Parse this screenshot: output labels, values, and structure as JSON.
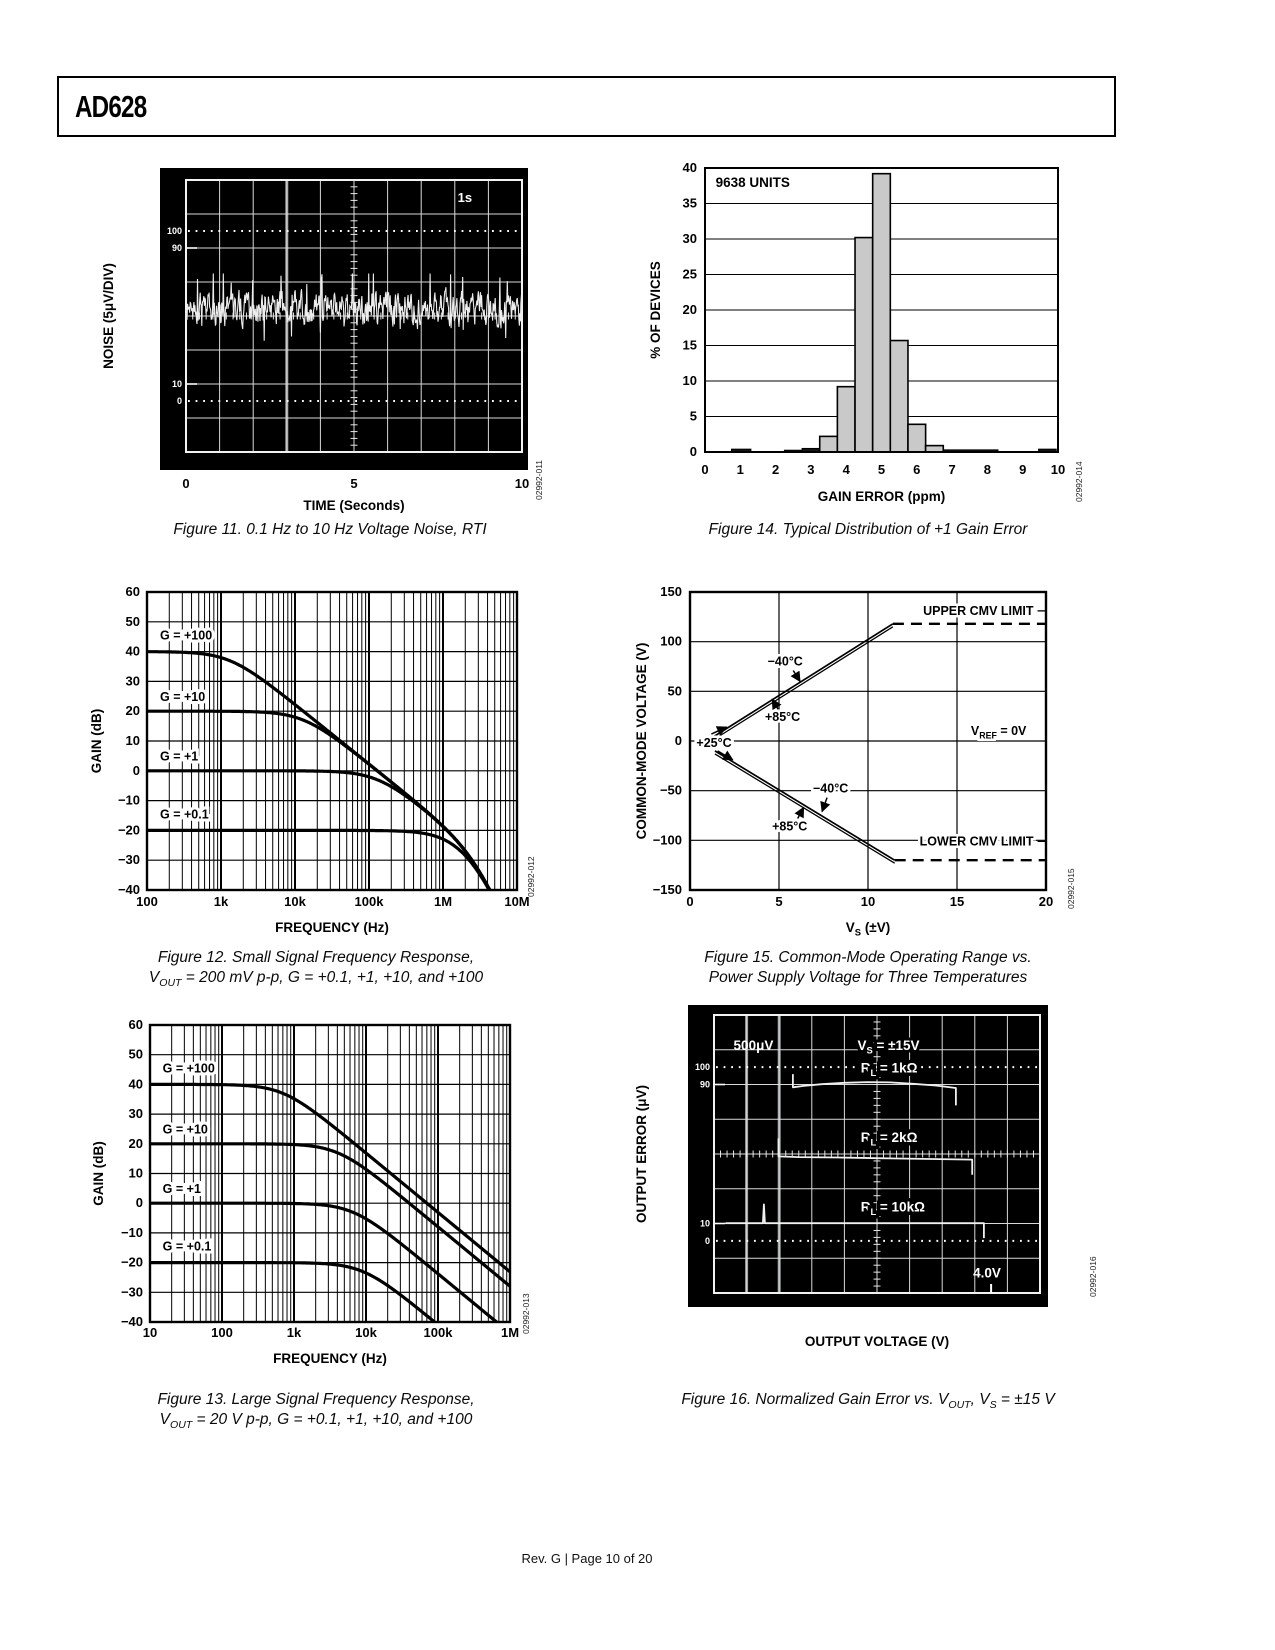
{
  "page": {
    "product": "AD628",
    "footer": "Rev. G | Page 10 of 20"
  },
  "colors": {
    "ink": "#000000",
    "scope_bg": "#000000",
    "scope_grid": "#d9d9d9",
    "scope_trace": "#f0f0f0",
    "bar_fill": "#c9c9c9",
    "bar_solid": "#141414"
  },
  "chart_data": [
    {
      "id": "fig11",
      "type": "line",
      "subtype": "oscilloscope",
      "caption_lines": [
        [
          "Figure 11. 0.1 Hz to 10 Hz Voltage Noise, RTI"
        ]
      ],
      "watermark": "02992-011",
      "xlabel": "TIME (Seconds)",
      "ylabel": "NOISE (5μV/DIV)",
      "xlim": [
        0,
        10
      ],
      "xtick_labels": [
        "0",
        "5",
        "10"
      ],
      "divisions": [
        10,
        8
      ],
      "graticule_marks": [
        {
          "label": "100",
          "div": 1.5,
          "dotted": true
        },
        {
          "label": "90",
          "div": 2.0,
          "dotted": false
        },
        {
          "label": "10",
          "div": 6.0,
          "dotted": false
        },
        {
          "label": "0",
          "div": 6.5,
          "dotted": true
        }
      ],
      "timebase_label": "1s",
      "bright_columns": [
        3
      ],
      "noise": {
        "seed": 11,
        "center_div": 3.8,
        "amp_div": 0.55,
        "description": "0.1 Hz to 10 Hz input-referred voltage noise, ≈3 μV p-p at 5 μV/division"
      }
    },
    {
      "id": "fig14",
      "type": "bar",
      "caption_lines": [
        [
          "Figure 14. Typical Distribution of +1 Gain Error"
        ]
      ],
      "watermark": "02992-014",
      "xlabel": "GAIN ERROR (ppm)",
      "ylabel": "% OF DEVICES",
      "annotation": "9638 UNITS",
      "xlim": [
        0,
        10
      ],
      "ylim": [
        0,
        40
      ],
      "xticks": [
        0,
        1,
        2,
        3,
        4,
        5,
        6,
        7,
        8,
        9,
        10
      ],
      "yticks": [
        0,
        5,
        10,
        15,
        20,
        25,
        30,
        35,
        40
      ],
      "bars": [
        {
          "x0": 0.75,
          "x1": 1.3,
          "value": 0.4,
          "solid": true
        },
        {
          "x0": 2.25,
          "x1": 2.75,
          "value": 0.25,
          "solid": true
        },
        {
          "x0": 2.75,
          "x1": 3.25,
          "value": 0.5,
          "solid": true
        },
        {
          "x0": 3.25,
          "x1": 3.75,
          "value": 2.2
        },
        {
          "x0": 3.75,
          "x1": 4.25,
          "value": 9.2
        },
        {
          "x0": 4.25,
          "x1": 4.75,
          "value": 30.2
        },
        {
          "x0": 4.75,
          "x1": 5.25,
          "value": 39.2
        },
        {
          "x0": 5.25,
          "x1": 5.75,
          "value": 15.7
        },
        {
          "x0": 5.75,
          "x1": 6.25,
          "value": 3.9
        },
        {
          "x0": 6.25,
          "x1": 6.75,
          "value": 0.9
        },
        {
          "x0": 6.75,
          "x1": 8.3,
          "value": 0.3,
          "solid": true
        },
        {
          "x0": 9.45,
          "x1": 9.95,
          "value": 0.4,
          "solid": true
        }
      ]
    },
    {
      "id": "fig12",
      "type": "line",
      "subtype": "bode",
      "caption_lines": [
        [
          "Figure 12. Small Signal Frequency Response,"
        ],
        [
          "V",
          "_OUT",
          " = 200 mV p-p, G = +0.1, +1, +10, and +100"
        ]
      ],
      "watermark": "02992-012",
      "xlabel": "FREQUENCY (Hz)",
      "ylabel": "GAIN (dB)",
      "xlog": true,
      "xlim": [
        100,
        10000000
      ],
      "xticks": [
        {
          "v": 100,
          "label": "100"
        },
        {
          "v": 1000,
          "label": "1k"
        },
        {
          "v": 10000,
          "label": "10k"
        },
        {
          "v": 100000,
          "label": "100k"
        },
        {
          "v": 1000000,
          "label": "1M"
        },
        {
          "v": 10000000,
          "label": "10M"
        }
      ],
      "ylim": [
        -40,
        60
      ],
      "ytick_step": 10,
      "series": [
        {
          "label": "G = +100",
          "gain_db": 40,
          "corner_hz": 1300,
          "label_f": 150,
          "label_db": 44
        },
        {
          "label": "G = +10",
          "gain_db": 20,
          "corner_hz": 13000,
          "label_f": 150,
          "label_db": 23.5
        },
        {
          "label": "G = +1",
          "gain_db": 0,
          "corner_hz": 130000,
          "label_f": 150,
          "label_db": 3.5
        },
        {
          "label": "G = +0.1",
          "gain_db": -20,
          "corner_hz": 1300000,
          "label_f": 150,
          "label_db": -16
        }
      ],
      "extra_poles_hz": [
        3000000,
        3000000
      ]
    },
    {
      "id": "fig15",
      "type": "line",
      "subtype": "operating-range",
      "caption_lines": [
        [
          "Figure 15. Common-Mode Operating Range vs."
        ],
        [
          "Power Supply Voltage for Three Temperatures"
        ]
      ],
      "watermark": "02992-015",
      "xlabel_tokens": [
        "V",
        "_S",
        " (±V)"
      ],
      "ylabel": "COMMON-MODE VOLTAGE (V)",
      "xlim": [
        0,
        20
      ],
      "xticks": [
        0,
        5,
        10,
        15,
        20
      ],
      "ylim": [
        -150,
        150
      ],
      "yticks": [
        -150,
        -100,
        -50,
        0,
        50,
        100,
        150
      ],
      "upper": {
        "solid": [
          [
            1.3,
            4
          ],
          [
            11.4,
            118
          ]
        ],
        "dash_y": 118,
        "label": "UPPER CMV LIMIT",
        "label_x": 19.3,
        "label_y": 131
      },
      "lower": {
        "solid": [
          [
            1.4,
            -10
          ],
          [
            11.5,
            -120
          ]
        ],
        "dash_y": -120,
        "label": "LOWER CMV LIMIT",
        "label_x": 19.3,
        "label_y": -101
      },
      "vref_tokens": [
        "V",
        "_REF",
        " = 0V"
      ],
      "vref_x": 18.9,
      "vref_y": 10,
      "temp_labels": [
        {
          "text": "−40°C",
          "x": 5.35,
          "y": 80,
          "arrows": [
            [
              [
                5.8,
                71
              ],
              [
                6.18,
                60
              ]
            ]
          ]
        },
        {
          "text": "+85°C",
          "x": 5.2,
          "y": 24,
          "arrows": [
            [
              [
                4.95,
                32
              ],
              [
                4.62,
                42
              ]
            ]
          ]
        },
        {
          "text": "+25°C",
          "x": 1.35,
          "y": -2,
          "arrows": [
            [
              [
                1.2,
                7
              ],
              [
                2.05,
                14
              ]
            ],
            [
              [
                1.55,
                -10
              ],
              [
                2.4,
                -19
              ]
            ]
          ]
        },
        {
          "text": "−40°C",
          "x": 7.9,
          "y": -48,
          "arrows": [
            [
              [
                7.7,
                -57
              ],
              [
                7.42,
                -71
              ]
            ]
          ]
        },
        {
          "text": "+85°C",
          "x": 5.6,
          "y": -86,
          "arrows": [
            [
              [
                6.05,
                -78
              ],
              [
                6.38,
                -67
              ]
            ]
          ]
        }
      ]
    },
    {
      "id": "fig13",
      "type": "line",
      "subtype": "bode",
      "caption_lines": [
        [
          "Figure 13. Large Signal Frequency Response,"
        ],
        [
          "V",
          "_OUT",
          " = 20 V p-p, G = +0.1, +1, +10, and +100"
        ]
      ],
      "watermark": "02992-013",
      "xlabel": "FREQUENCY (Hz)",
      "ylabel": "GAIN (dB)",
      "xlog": true,
      "xlim": [
        10,
        1000000
      ],
      "xticks": [
        {
          "v": 10,
          "label": "10"
        },
        {
          "v": 100,
          "label": "100"
        },
        {
          "v": 1000,
          "label": "1k"
        },
        {
          "v": 10000,
          "label": "10k"
        },
        {
          "v": 100000,
          "label": "100k"
        },
        {
          "v": 1000000,
          "label": "1M"
        }
      ],
      "ylim": [
        -40,
        60
      ],
      "ytick_step": 10,
      "series": [
        {
          "label": "G = +100",
          "gain_db": 40,
          "corner_hz": 700,
          "label_f": 15,
          "label_db": 44
        },
        {
          "label": "G = +10",
          "gain_db": 20,
          "corner_hz": 4000,
          "label_f": 15,
          "label_db": 23.5
        },
        {
          "label": "G = +1",
          "gain_db": 0,
          "corner_hz": 6500,
          "label_f": 15,
          "label_db": 3.5
        },
        {
          "label": "G = +0.1",
          "gain_db": -20,
          "corner_hz": 9000,
          "label_f": 15,
          "label_db": -16
        }
      ],
      "extra_poles_hz": []
    },
    {
      "id": "fig16",
      "type": "line",
      "subtype": "oscilloscope",
      "caption_lines": [
        [
          "Figure 16. Normalized Gain Error vs. V",
          "_OUT",
          ", V",
          "_S",
          " = ±15 V"
        ]
      ],
      "watermark": "02992-016",
      "xlabel": "OUTPUT VOLTAGE (V)",
      "ylabel": "OUTPUT ERROR (μV)",
      "divisions": [
        10,
        8
      ],
      "graticule_marks": [
        {
          "label": "100",
          "div": 1.5,
          "dotted": true
        },
        {
          "label": "90",
          "div": 2.0,
          "dotted": false
        },
        {
          "label": "10",
          "div": 6.0,
          "dotted": false
        },
        {
          "label": "0",
          "div": 6.5,
          "dotted": true
        }
      ],
      "scale_label": "500μV",
      "supply_tokens": [
        "V",
        "_S",
        " = ±15V"
      ],
      "volt_label": "4.0V",
      "bright_columns": [
        1,
        2
      ],
      "bottom_tick_div": 8.5,
      "traces": [
        {
          "label_tokens": [
            "R",
            "_L",
            " = 1kΩ"
          ],
          "label_div": [
            4.5,
            1.66
          ],
          "points": [
            [
              2.42,
              1.7
            ],
            [
              2.42,
              2.08
            ],
            [
              2.75,
              2.04
            ],
            [
              3.3,
              1.99
            ],
            [
              4.0,
              1.95
            ],
            [
              4.7,
              1.93
            ],
            [
              5.4,
              1.94
            ],
            [
              6.1,
              1.98
            ],
            [
              6.8,
              2.03
            ],
            [
              7.42,
              2.1
            ],
            [
              7.42,
              2.6
            ]
          ]
        },
        {
          "label_tokens": [
            "R",
            "_L",
            " = 2kΩ"
          ],
          "label_div": [
            4.5,
            3.66
          ],
          "points": [
            [
              1.98,
              3.55
            ],
            [
              1.98,
              4.07
            ],
            [
              2.6,
              4.09
            ],
            [
              3.8,
              4.1
            ],
            [
              5.0,
              4.12
            ],
            [
              6.4,
              4.14
            ],
            [
              7.92,
              4.16
            ],
            [
              7.92,
              4.6
            ]
          ]
        },
        {
          "label_tokens": [
            "R",
            "_L",
            " = 10kΩ"
          ],
          "label_div": [
            4.5,
            5.66
          ],
          "points": [
            [
              0.35,
              5.99
            ],
            [
              1.5,
              5.99
            ],
            [
              1.53,
              5.45
            ],
            [
              1.56,
              5.99
            ],
            [
              8.28,
              5.99
            ],
            [
              8.28,
              6.42
            ]
          ]
        }
      ]
    }
  ]
}
